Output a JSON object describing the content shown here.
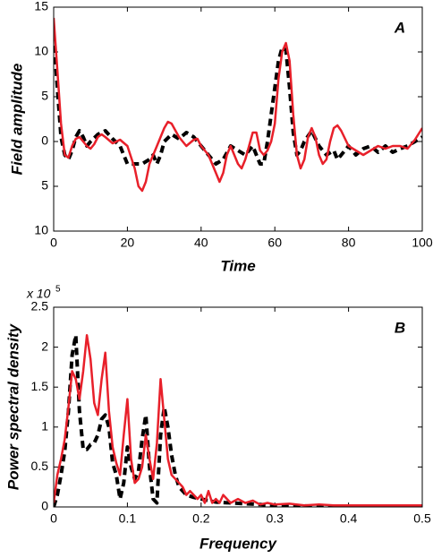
{
  "chart_data": [
    {
      "type": "line",
      "annotation": "A",
      "xlabel": "Time",
      "ylabel": "Field amplitude",
      "xlim": [
        0,
        100
      ],
      "xticks": [
        0,
        20,
        40,
        60,
        80,
        100
      ],
      "ylim": [
        -10,
        15
      ],
      "yticks": [
        {
          "value": -10,
          "label": "10"
        },
        {
          "value": -5,
          "label": "5"
        },
        0,
        5,
        10,
        15
      ],
      "series": [
        {
          "color": "#000000",
          "dashed": true,
          "x": [
            0,
            1,
            2,
            3,
            4,
            5,
            6,
            7,
            8,
            9,
            10,
            12,
            14,
            16,
            18,
            20,
            22,
            24,
            26,
            27,
            28,
            29,
            30,
            32,
            34,
            36,
            38,
            40,
            42,
            44,
            46,
            48,
            50,
            52,
            54,
            56,
            57,
            58,
            60,
            61,
            62,
            63,
            64,
            65,
            66,
            67,
            68,
            70,
            72,
            74,
            76,
            77,
            78,
            80,
            82,
            84,
            86,
            88,
            90,
            92,
            94,
            96,
            98,
            100
          ],
          "values": [
            12,
            6,
            0.5,
            -1.5,
            -2,
            -1,
            0.5,
            1.2,
            0.5,
            -0.5,
            0,
            0.8,
            1.2,
            0.3,
            -0.5,
            -2.5,
            -2.5,
            -2.5,
            -2,
            -1.5,
            -2.5,
            -1.5,
            0,
            0.8,
            0.3,
            1,
            0.5,
            -0.5,
            -1.5,
            -2.5,
            -2,
            -0.5,
            -1,
            -1.5,
            -0.5,
            -2.5,
            -2.5,
            0,
            6,
            9,
            10.5,
            10.2,
            6,
            1,
            -1.5,
            -1,
            0,
            1.2,
            -0.5,
            -1.5,
            -1,
            -2,
            -1.5,
            -0.5,
            -1.5,
            -0.8,
            -0.5,
            -1.2,
            -0.5,
            -1.2,
            -0.8,
            -0.5,
            0,
            0.5
          ]
        },
        {
          "color": "#e8202a",
          "dashed": false,
          "x": [
            0,
            1,
            2,
            3,
            4,
            5,
            6,
            7,
            8,
            9,
            10,
            11,
            12,
            13,
            14,
            16,
            18,
            20,
            22,
            23,
            24,
            25,
            26,
            28,
            30,
            31,
            32,
            34,
            36,
            38,
            39,
            40,
            42,
            44,
            45,
            46,
            47,
            48,
            49,
            50,
            51,
            52,
            53,
            54,
            55,
            56,
            57,
            58,
            59,
            60,
            61,
            62,
            63,
            64,
            65,
            66,
            67,
            68,
            69,
            70,
            71,
            72,
            73,
            74,
            75,
            76,
            77,
            78,
            80,
            82,
            84,
            86,
            88,
            90,
            92,
            94,
            96,
            98,
            100
          ],
          "values": [
            13.8,
            8,
            2,
            -1.5,
            -1.8,
            -0.5,
            0.3,
            0.5,
            0,
            -0.5,
            -0.8,
            -0.3,
            0.5,
            0.8,
            0.5,
            -0.2,
            0.2,
            -0.5,
            -3,
            -5,
            -5.5,
            -4.5,
            -2.5,
            -0.5,
            1.5,
            2.2,
            2,
            0.5,
            -0.5,
            0.2,
            0.3,
            -0.5,
            -1.5,
            -3.5,
            -4.5,
            -3.5,
            -1.5,
            -0.5,
            -1.5,
            -2.5,
            -3,
            -2,
            -0.5,
            1,
            1,
            -1,
            -1.5,
            -1,
            0,
            2,
            7,
            10,
            11,
            9,
            3,
            -1.5,
            -3,
            -2,
            0.5,
            1.5,
            0.5,
            -1.5,
            -2.5,
            -2,
            0,
            1.5,
            1.8,
            1.2,
            -0.5,
            -1,
            -1.5,
            -1,
            -0.5,
            -0.8,
            -0.5,
            -0.5,
            -0.8,
            0.2,
            1.5
          ]
        }
      ]
    },
    {
      "type": "line",
      "annotation": "B",
      "xlabel": "Frequency",
      "ylabel": "Power  spectral  density",
      "multiplier": "x  10",
      "multiplier_exponent": "5",
      "xlim": [
        0,
        0.5
      ],
      "xticks": [
        0,
        0.1,
        0.2,
        0.3,
        0.4,
        0.5
      ],
      "ylim": [
        0,
        2.5
      ],
      "yticks": [
        0,
        0.5,
        1,
        1.5,
        2,
        2.5
      ],
      "series": [
        {
          "color": "#000000",
          "dashed": true,
          "x": [
            0,
            0.005,
            0.01,
            0.015,
            0.02,
            0.025,
            0.03,
            0.035,
            0.04,
            0.045,
            0.05,
            0.055,
            0.06,
            0.065,
            0.07,
            0.075,
            0.08,
            0.085,
            0.09,
            0.095,
            0.1,
            0.105,
            0.11,
            0.115,
            0.12,
            0.125,
            0.13,
            0.135,
            0.14,
            0.145,
            0.15,
            0.155,
            0.16,
            0.165,
            0.17,
            0.175,
            0.18,
            0.19,
            0.2,
            0.21,
            0.22,
            0.24,
            0.26,
            0.28,
            0.3,
            0.35,
            0.4,
            0.5
          ],
          "values": [
            0,
            0.15,
            0.4,
            0.7,
            1.2,
            1.9,
            2.15,
            1.2,
            0.72,
            0.72,
            0.78,
            0.8,
            0.9,
            1.1,
            1.15,
            1.0,
            0.55,
            0.4,
            0.1,
            0.3,
            0.75,
            0.5,
            0.35,
            0.45,
            0.85,
            1.15,
            0.5,
            0.1,
            0.05,
            0.9,
            1.25,
            1.0,
            0.65,
            0.4,
            0.25,
            0.2,
            0.15,
            0.12,
            0.1,
            0.08,
            0.06,
            0.05,
            0.04,
            0.03,
            0.02,
            0.01,
            0.01,
            0.01
          ]
        },
        {
          "color": "#e8202a",
          "dashed": false,
          "x": [
            0,
            0.005,
            0.01,
            0.015,
            0.02,
            0.025,
            0.03,
            0.035,
            0.04,
            0.045,
            0.05,
            0.055,
            0.06,
            0.065,
            0.07,
            0.075,
            0.08,
            0.085,
            0.09,
            0.095,
            0.1,
            0.105,
            0.11,
            0.115,
            0.12,
            0.125,
            0.13,
            0.135,
            0.14,
            0.145,
            0.15,
            0.155,
            0.16,
            0.165,
            0.17,
            0.175,
            0.18,
            0.185,
            0.19,
            0.195,
            0.2,
            0.205,
            0.21,
            0.215,
            0.22,
            0.225,
            0.23,
            0.24,
            0.25,
            0.26,
            0.27,
            0.28,
            0.29,
            0.3,
            0.32,
            0.34,
            0.36,
            0.38,
            0.4,
            0.45,
            0.5
          ],
          "values": [
            0.05,
            0.4,
            0.6,
            0.85,
            1.25,
            1.7,
            1.6,
            1.35,
            1.7,
            2.15,
            1.85,
            1.3,
            1.15,
            1.6,
            1.93,
            1.2,
            0.75,
            0.55,
            0.4,
            0.9,
            1.35,
            0.6,
            0.3,
            0.35,
            0.5,
            0.9,
            0.6,
            0.35,
            0.8,
            1.6,
            1.1,
            0.6,
            0.4,
            0.35,
            0.3,
            0.25,
            0.15,
            0.2,
            0.15,
            0.1,
            0.15,
            0.05,
            0.2,
            0.05,
            0.1,
            0.05,
            0.15,
            0.05,
            0.1,
            0.05,
            0.08,
            0.03,
            0.05,
            0.03,
            0.04,
            0.02,
            0.03,
            0.02,
            0.02,
            0.02,
            0.02
          ]
        }
      ]
    }
  ]
}
